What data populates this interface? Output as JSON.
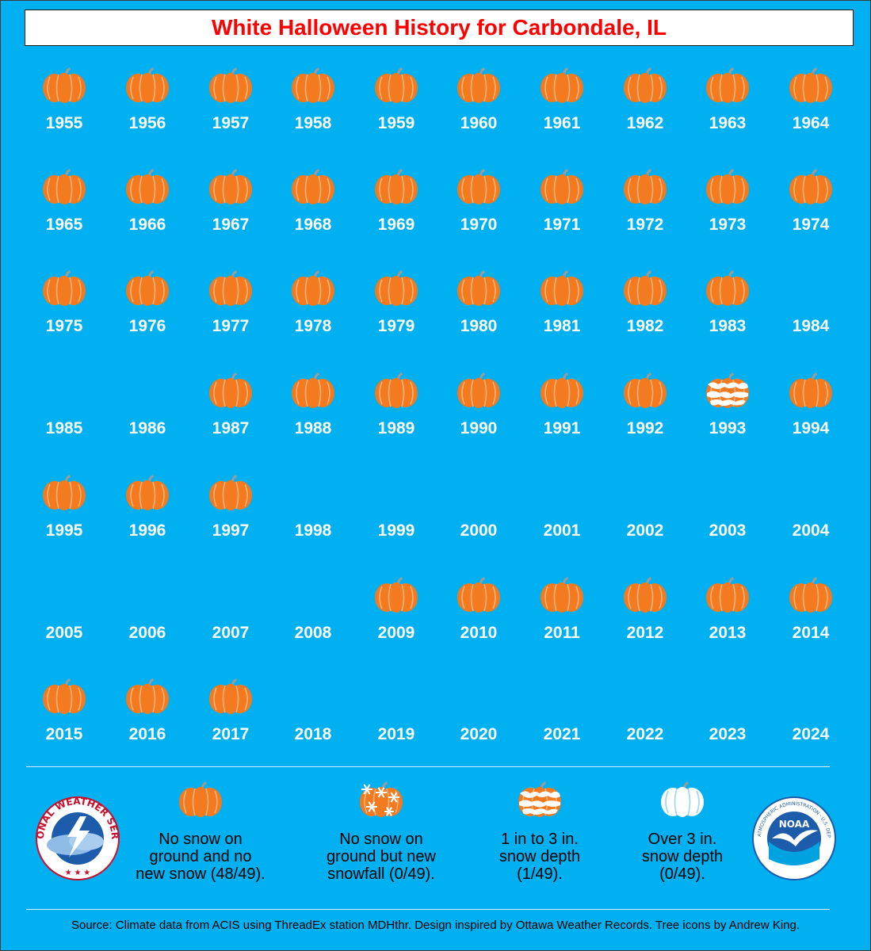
{
  "title": "White Halloween History for Carbondale, IL",
  "colors": {
    "background": "#00b0f0",
    "pumpkin": "#f47a20",
    "title": "#ff0000"
  },
  "years": [
    {
      "year": "1955",
      "icon": "pumpkin-icon"
    },
    {
      "year": "1956",
      "icon": "pumpkin-icon"
    },
    {
      "year": "1957",
      "icon": "pumpkin-icon"
    },
    {
      "year": "1958",
      "icon": "pumpkin-icon"
    },
    {
      "year": "1959",
      "icon": "pumpkin-icon"
    },
    {
      "year": "1960",
      "icon": "pumpkin-icon"
    },
    {
      "year": "1961",
      "icon": "pumpkin-icon"
    },
    {
      "year": "1962",
      "icon": "pumpkin-icon"
    },
    {
      "year": "1963",
      "icon": "pumpkin-icon"
    },
    {
      "year": "1964",
      "icon": "pumpkin-icon"
    },
    {
      "year": "1965",
      "icon": "pumpkin-icon"
    },
    {
      "year": "1966",
      "icon": "pumpkin-icon"
    },
    {
      "year": "1967",
      "icon": "pumpkin-icon"
    },
    {
      "year": "1968",
      "icon": "pumpkin-icon"
    },
    {
      "year": "1969",
      "icon": "pumpkin-icon"
    },
    {
      "year": "1970",
      "icon": "pumpkin-icon"
    },
    {
      "year": "1971",
      "icon": "pumpkin-icon"
    },
    {
      "year": "1972",
      "icon": "pumpkin-icon"
    },
    {
      "year": "1973",
      "icon": "pumpkin-icon"
    },
    {
      "year": "1974",
      "icon": "pumpkin-icon"
    },
    {
      "year": "1975",
      "icon": "pumpkin-icon"
    },
    {
      "year": "1976",
      "icon": "pumpkin-icon"
    },
    {
      "year": "1977",
      "icon": "pumpkin-icon"
    },
    {
      "year": "1978",
      "icon": "pumpkin-icon"
    },
    {
      "year": "1979",
      "icon": "pumpkin-icon"
    },
    {
      "year": "1980",
      "icon": "pumpkin-icon"
    },
    {
      "year": "1981",
      "icon": "pumpkin-icon"
    },
    {
      "year": "1982",
      "icon": "pumpkin-icon"
    },
    {
      "year": "1983",
      "icon": "pumpkin-icon"
    },
    {
      "year": "1984",
      "icon": ""
    },
    {
      "year": "1985",
      "icon": ""
    },
    {
      "year": "1986",
      "icon": ""
    },
    {
      "year": "1987",
      "icon": "pumpkin-icon"
    },
    {
      "year": "1988",
      "icon": "pumpkin-icon"
    },
    {
      "year": "1989",
      "icon": "pumpkin-icon"
    },
    {
      "year": "1990",
      "icon": "pumpkin-icon"
    },
    {
      "year": "1991",
      "icon": "pumpkin-icon"
    },
    {
      "year": "1992",
      "icon": "pumpkin-icon"
    },
    {
      "year": "1993",
      "icon": "snow-depth-pumpkin-icon"
    },
    {
      "year": "1994",
      "icon": "pumpkin-icon"
    },
    {
      "year": "1995",
      "icon": "pumpkin-icon"
    },
    {
      "year": "1996",
      "icon": "pumpkin-icon"
    },
    {
      "year": "1997",
      "icon": "pumpkin-icon"
    },
    {
      "year": "1998",
      "icon": ""
    },
    {
      "year": "1999",
      "icon": ""
    },
    {
      "year": "2000",
      "icon": ""
    },
    {
      "year": "2001",
      "icon": ""
    },
    {
      "year": "2002",
      "icon": ""
    },
    {
      "year": "2003",
      "icon": ""
    },
    {
      "year": "2004",
      "icon": ""
    },
    {
      "year": "2005",
      "icon": ""
    },
    {
      "year": "2006",
      "icon": ""
    },
    {
      "year": "2007",
      "icon": ""
    },
    {
      "year": "2008",
      "icon": ""
    },
    {
      "year": "2009",
      "icon": "pumpkin-icon"
    },
    {
      "year": "2010",
      "icon": "pumpkin-icon"
    },
    {
      "year": "2011",
      "icon": "pumpkin-icon"
    },
    {
      "year": "2012",
      "icon": "pumpkin-icon"
    },
    {
      "year": "2013",
      "icon": "pumpkin-icon"
    },
    {
      "year": "2014",
      "icon": "pumpkin-icon"
    },
    {
      "year": "2015",
      "icon": "pumpkin-icon"
    },
    {
      "year": "2016",
      "icon": "pumpkin-icon"
    },
    {
      "year": "2017",
      "icon": "pumpkin-icon"
    },
    {
      "year": "2018",
      "icon": ""
    },
    {
      "year": "2019",
      "icon": ""
    },
    {
      "year": "2020",
      "icon": ""
    },
    {
      "year": "2021",
      "icon": ""
    },
    {
      "year": "2022",
      "icon": ""
    },
    {
      "year": "2023",
      "icon": ""
    },
    {
      "year": "2024",
      "icon": ""
    }
  ],
  "legend": [
    {
      "icon": "pumpkin-icon",
      "lines": [
        "No snow on",
        "ground and no",
        "new snow (48/49)."
      ]
    },
    {
      "icon": "snowflake-pumpkin-icon",
      "lines": [
        "No snow on",
        "ground but new",
        "snowfall (0/49)."
      ]
    },
    {
      "icon": "snow-depth-pumpkin-icon",
      "lines": [
        "1 in to 3 in.",
        "snow depth",
        "(1/49)."
      ]
    },
    {
      "icon": "white-pumpkin-icon",
      "lines": [
        "Over 3 in.",
        "snow depth",
        "(0/49)."
      ]
    }
  ],
  "logos": {
    "nws_text": "NATIONAL WEATHER SERVICE",
    "noaa_text": "NOAA",
    "noaa_ring": "NATIONAL OCEANIC AND ATMOSPHERIC ADMINISTRATION · U.S. DEPARTMENT OF COMMERCE"
  },
  "source": "Source: Climate data from ACIS using ThreadEx station MDHthr. Design inspired by Ottawa Weather Records. Tree icons by Andrew King."
}
